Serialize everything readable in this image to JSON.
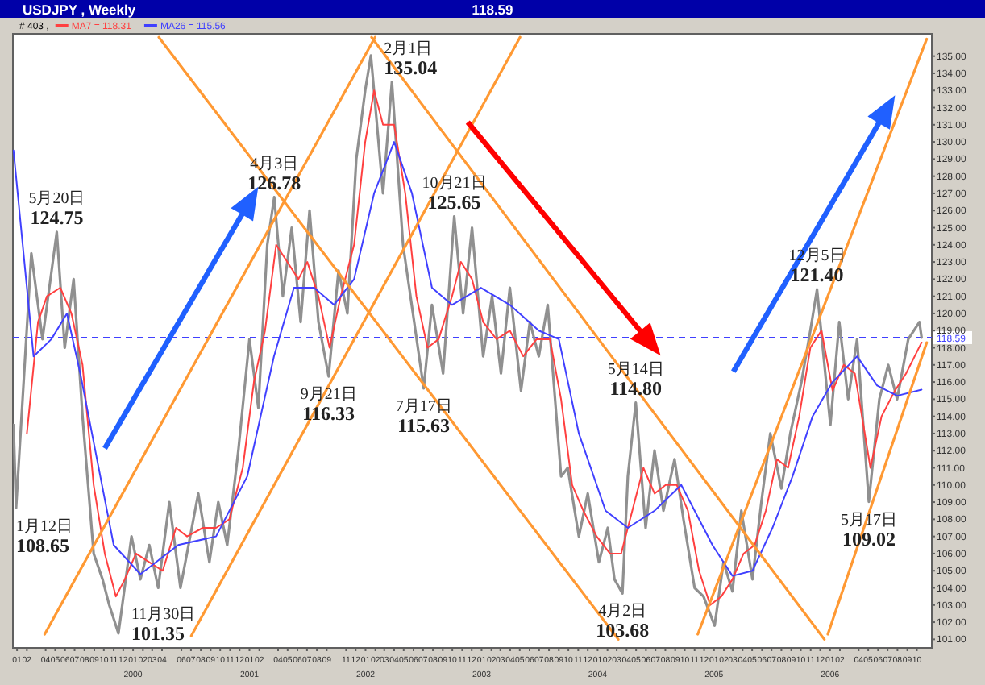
{
  "chart_data": {
    "type": "line",
    "title": "USDJPY , Weekly",
    "legend": "top left",
    "xlim": [
      "1999-01-02",
      "2006-12-01"
    ],
    "ylim": [
      100.5,
      136.3
    ],
    "xticks": [
      {
        "value": "1999-01-15",
        "label": "01"
      },
      {
        "value": "1999-02-15",
        "label": "02"
      },
      {
        "value": "1999-04-15",
        "label": "04"
      },
      {
        "value": "1999-05-15",
        "label": "05"
      },
      {
        "value": "1999-06-15",
        "label": "06"
      },
      {
        "value": "1999-07-15",
        "label": "07"
      },
      {
        "value": "1999-08-15",
        "label": "08"
      },
      {
        "value": "1999-09-15",
        "label": "09"
      },
      {
        "value": "1999-10-15",
        "label": "10"
      },
      {
        "value": "1999-11-15",
        "label": "11"
      },
      {
        "value": "1999-12-15",
        "label": "12"
      },
      {
        "value": "2000-01-15",
        "label": "01\n2000"
      },
      {
        "value": "2000-02-15",
        "label": "02"
      },
      {
        "value": "2000-03-15",
        "label": "03"
      },
      {
        "value": "2000-04-15",
        "label": "04"
      },
      {
        "value": "2000-06-15",
        "label": "06"
      },
      {
        "value": "2000-07-15",
        "label": "07"
      },
      {
        "value": "2000-08-15",
        "label": "08"
      },
      {
        "value": "2000-09-15",
        "label": "09"
      },
      {
        "value": "2000-10-15",
        "label": "10"
      },
      {
        "value": "2000-11-15",
        "label": "11"
      },
      {
        "value": "2000-12-15",
        "label": "12"
      },
      {
        "value": "2001-01-15",
        "label": "01\n2001"
      },
      {
        "value": "2001-02-15",
        "label": "02"
      },
      {
        "value": "2001-04-15",
        "label": "04"
      },
      {
        "value": "2001-05-15",
        "label": "05"
      },
      {
        "value": "2001-06-15",
        "label": "06"
      },
      {
        "value": "2001-07-15",
        "label": "07"
      },
      {
        "value": "2001-08-15",
        "label": "08"
      },
      {
        "value": "2001-09-15",
        "label": "09"
      },
      {
        "value": "2001-11-15",
        "label": "11"
      },
      {
        "value": "2001-12-15",
        "label": "12"
      },
      {
        "value": "2002-01-15",
        "label": "01\n2002"
      },
      {
        "value": "2002-02-15",
        "label": "02"
      },
      {
        "value": "2002-03-15",
        "label": "03"
      },
      {
        "value": "2002-04-15",
        "label": "04"
      },
      {
        "value": "2002-05-15",
        "label": "05"
      },
      {
        "value": "2002-06-15",
        "label": "06"
      },
      {
        "value": "2002-07-15",
        "label": "07"
      },
      {
        "value": "2002-08-15",
        "label": "08"
      },
      {
        "value": "2002-09-15",
        "label": "09"
      },
      {
        "value": "2002-10-15",
        "label": "10"
      },
      {
        "value": "2002-11-15",
        "label": "11"
      },
      {
        "value": "2002-12-15",
        "label": "12"
      },
      {
        "value": "2003-01-15",
        "label": "01\n2003"
      },
      {
        "value": "2003-02-15",
        "label": "02"
      },
      {
        "value": "2003-03-15",
        "label": "03"
      },
      {
        "value": "2003-04-15",
        "label": "04"
      },
      {
        "value": "2003-05-15",
        "label": "05"
      },
      {
        "value": "2003-06-15",
        "label": "06"
      },
      {
        "value": "2003-07-15",
        "label": "07"
      },
      {
        "value": "2003-08-15",
        "label": "08"
      },
      {
        "value": "2003-09-15",
        "label": "09"
      },
      {
        "value": "2003-10-15",
        "label": "10"
      },
      {
        "value": "2003-11-15",
        "label": "11"
      },
      {
        "value": "2003-12-15",
        "label": "12"
      },
      {
        "value": "2004-01-15",
        "label": "01\n2004"
      },
      {
        "value": "2004-02-15",
        "label": "02"
      },
      {
        "value": "2004-03-15",
        "label": "03"
      },
      {
        "value": "2004-04-15",
        "label": "04"
      },
      {
        "value": "2004-05-15",
        "label": "05"
      },
      {
        "value": "2004-06-15",
        "label": "06"
      },
      {
        "value": "2004-07-15",
        "label": "07"
      },
      {
        "value": "2004-08-15",
        "label": "08"
      },
      {
        "value": "2004-09-15",
        "label": "09"
      },
      {
        "value": "2004-10-15",
        "label": "10"
      },
      {
        "value": "2004-11-15",
        "label": "11"
      },
      {
        "value": "2004-12-15",
        "label": "12"
      },
      {
        "value": "2005-01-15",
        "label": "01\n2005"
      },
      {
        "value": "2005-02-15",
        "label": "02"
      },
      {
        "value": "2005-03-15",
        "label": "03"
      },
      {
        "value": "2005-04-15",
        "label": "04"
      },
      {
        "value": "2005-05-15",
        "label": "05"
      },
      {
        "value": "2005-06-15",
        "label": "06"
      },
      {
        "value": "2005-07-15",
        "label": "07"
      },
      {
        "value": "2005-08-15",
        "label": "08"
      },
      {
        "value": "2005-09-15",
        "label": "09"
      },
      {
        "value": "2005-10-15",
        "label": "10"
      },
      {
        "value": "2005-11-15",
        "label": "11"
      },
      {
        "value": "2005-12-15",
        "label": "12"
      },
      {
        "value": "2006-01-15",
        "label": "01\n2006"
      },
      {
        "value": "2006-02-15",
        "label": "02"
      },
      {
        "value": "2006-04-15",
        "label": "04"
      },
      {
        "value": "2006-05-15",
        "label": "05"
      },
      {
        "value": "2006-06-15",
        "label": "06"
      },
      {
        "value": "2006-07-15",
        "label": "07"
      },
      {
        "value": "2006-08-15",
        "label": "08"
      },
      {
        "value": "2006-09-15",
        "label": "09"
      },
      {
        "value": "2006-10-15",
        "label": "10"
      }
    ],
    "yticks": [
      {
        "value": 101,
        "label": "101.00"
      },
      {
        "value": 102,
        "label": "102.00"
      },
      {
        "value": 103,
        "label": "103.00"
      },
      {
        "value": 104,
        "label": "104.00"
      },
      {
        "value": 105,
        "label": "105.00"
      },
      {
        "value": 106,
        "label": "106.00"
      },
      {
        "value": 107,
        "label": "107.00"
      },
      {
        "value": 108,
        "label": "108.00"
      },
      {
        "value": 109,
        "label": "109.00"
      },
      {
        "value": 110,
        "label": "110.00"
      },
      {
        "value": 111,
        "label": "111.00"
      },
      {
        "value": 112,
        "label": "112.00"
      },
      {
        "value": 113,
        "label": "113.00"
      },
      {
        "value": 114,
        "label": "114.00"
      },
      {
        "value": 115,
        "label": "115.00"
      },
      {
        "value": 116,
        "label": "116.00"
      },
      {
        "value": 117,
        "label": "117.00"
      },
      {
        "value": 118,
        "label": "118.00"
      },
      {
        "value": 119,
        "label": "119.00"
      },
      {
        "value": 120,
        "label": "120.00"
      },
      {
        "value": 121,
        "label": "121.00"
      },
      {
        "value": 122,
        "label": "122.00"
      },
      {
        "value": 123,
        "label": "123.00"
      },
      {
        "value": 124,
        "label": "124.00"
      },
      {
        "value": 125,
        "label": "125.00"
      },
      {
        "value": 126,
        "label": "126.00"
      },
      {
        "value": 127,
        "label": "127.00"
      },
      {
        "value": 128,
        "label": "128.00"
      },
      {
        "value": 129,
        "label": "129.00"
      },
      {
        "value": 130,
        "label": "130.00"
      },
      {
        "value": 131,
        "label": "131.00"
      },
      {
        "value": 132,
        "label": "132.00"
      },
      {
        "value": 133,
        "label": "133.00"
      },
      {
        "value": 134,
        "label": "134.00"
      },
      {
        "value": 135,
        "label": "135.00"
      }
    ],
    "ref_lines": [
      {
        "axis": "y",
        "value": 118.59,
        "label": "118.59",
        "color": "#4040ff",
        "line_style": "dashed"
      }
    ],
    "annotations": [
      "118.59",
      "# 403 ,",
      {
        "text": "1月12日\n108.65",
        "x": "1999-01-12",
        "y": 108.65
      },
      {
        "text": "5月20日\n124.75",
        "x": "1999-05-20",
        "y": 124.75
      },
      {
        "text": "11月30日\n101.35",
        "x": "1999-11-30",
        "y": 101.35
      },
      {
        "text": "4月3日\n126.78",
        "x": "2001-04-03",
        "y": 126.78
      },
      {
        "text": "9月21日\n116.33",
        "x": "2001-09-21",
        "y": 116.33
      },
      {
        "text": "2月1日\n135.04",
        "x": "2002-02-01",
        "y": 135.04
      },
      {
        "text": "7月17日\n115.63",
        "x": "2002-07-17",
        "y": 115.63
      },
      {
        "text": "10月21日\n125.65",
        "x": "2002-10-21",
        "y": 125.65
      },
      {
        "text": "4月2日\n103.68",
        "x": "2004-04-02",
        "y": 103.68
      },
      {
        "text": "5月14日\n114.80",
        "x": "2004-05-14",
        "y": 114.8
      },
      {
        "text": "12月5日\n121.40",
        "x": "2005-12-05",
        "y": 121.4
      },
      {
        "text": "5月17日\n109.02",
        "x": "2006-05-17",
        "y": 109.02
      }
    ],
    "series": [
      {
        "color": "#909090",
        "x": [
          "1999-01-04",
          "1999-01-12",
          "1999-02-08",
          "1999-03-01",
          "1999-04-05",
          "1999-05-20",
          "1999-06-14",
          "1999-07-12",
          "1999-08-09",
          "1999-09-13",
          "1999-10-11",
          "1999-11-01",
          "1999-11-30",
          "2000-01-10",
          "2000-02-07",
          "2000-03-06",
          "2000-04-03",
          "2000-05-08",
          "2000-06-12",
          "2000-08-07",
          "2000-09-11",
          "2000-10-09",
          "2000-11-06",
          "2000-12-11",
          "2001-01-15",
          "2001-02-12",
          "2001-03-12",
          "2001-04-03",
          "2001-04-30",
          "2001-05-28",
          "2001-06-25",
          "2001-07-23",
          "2001-08-20",
          "2001-09-21",
          "2001-10-22",
          "2001-11-19",
          "2001-12-17",
          "2002-01-14",
          "2002-02-01",
          "2002-03-11",
          "2002-04-08",
          "2002-05-13",
          "2002-06-17",
          "2002-07-17",
          "2002-08-12",
          "2002-09-16",
          "2002-10-21",
          "2002-11-18",
          "2002-12-16",
          "2003-01-20",
          "2003-02-17",
          "2003-03-17",
          "2003-04-14",
          "2003-05-19",
          "2003-06-16",
          "2003-07-14",
          "2003-08-11",
          "2003-09-22",
          "2003-10-13",
          "2003-11-17",
          "2003-12-15",
          "2004-01-19",
          "2004-02-16",
          "2004-03-08",
          "2004-04-02",
          "2004-04-19",
          "2004-05-14",
          "2004-06-14",
          "2004-07-12",
          "2004-08-09",
          "2004-09-13",
          "2004-10-11",
          "2004-11-15",
          "2004-12-13",
          "2005-01-17",
          "2005-02-14",
          "2005-03-14",
          "2005-04-11",
          "2005-05-16",
          "2005-06-13",
          "2005-07-11",
          "2005-08-15",
          "2005-09-12",
          "2005-10-17",
          "2005-11-14",
          "2005-12-05",
          "2006-01-16",
          "2006-02-13",
          "2006-03-13",
          "2006-04-10",
          "2006-05-17",
          "2006-06-19",
          "2006-07-17",
          "2006-08-14",
          "2006-09-18",
          "2006-10-23",
          "2006-10-30"
        ],
        "values": [
          113.5,
          108.65,
          117.0,
          123.5,
          118.5,
          124.75,
          118.0,
          122.0,
          114.0,
          106.0,
          104.5,
          103.0,
          101.35,
          107.0,
          104.5,
          106.5,
          104.0,
          109.0,
          104.0,
          109.5,
          105.5,
          109.0,
          106.5,
          112.0,
          118.5,
          114.5,
          124.0,
          126.78,
          121.0,
          125.0,
          119.5,
          126.0,
          119.5,
          116.33,
          122.5,
          120.0,
          129.0,
          133.0,
          135.04,
          127.0,
          133.5,
          124.0,
          119.5,
          115.63,
          120.5,
          116.5,
          125.65,
          120.0,
          125.0,
          117.5,
          121.0,
          116.5,
          121.5,
          115.5,
          119.5,
          117.5,
          120.5,
          110.5,
          111.0,
          107.0,
          109.5,
          105.5,
          107.5,
          104.5,
          103.68,
          110.5,
          114.8,
          107.5,
          112.0,
          108.5,
          111.5,
          108.0,
          104.0,
          103.5,
          101.8,
          105.5,
          103.8,
          108.5,
          104.5,
          109.0,
          113.0,
          109.8,
          113.0,
          116.0,
          119.0,
          121.4,
          113.5,
          119.5,
          115.0,
          118.5,
          109.02,
          115.0,
          117.0,
          115.0,
          118.5,
          119.5,
          118.59
        ]
      },
      {
        "name": "MA7 = 118.31",
        "color": "#ff4040",
        "x": [
          "1999-02-15",
          "1999-03-22",
          "1999-04-19",
          "1999-05-31",
          "1999-07-05",
          "1999-08-09",
          "1999-09-13",
          "1999-10-18",
          "1999-11-22",
          "1999-12-20",
          "2000-01-24",
          "2000-03-06",
          "2000-04-17",
          "2000-05-29",
          "2000-07-03",
          "2000-08-21",
          "2000-10-02",
          "2000-11-13",
          "2000-12-25",
          "2001-01-29",
          "2001-03-05",
          "2001-04-09",
          "2001-05-14",
          "2001-06-18",
          "2001-07-16",
          "2001-08-20",
          "2001-09-24",
          "2001-10-29",
          "2001-12-10",
          "2002-01-14",
          "2002-02-11",
          "2002-03-11",
          "2002-04-15",
          "2002-05-20",
          "2002-06-24",
          "2002-07-29",
          "2002-09-02",
          "2002-10-14",
          "2002-11-11",
          "2002-12-16",
          "2003-01-20",
          "2003-03-03",
          "2003-04-14",
          "2003-05-26",
          "2003-07-07",
          "2003-08-18",
          "2003-09-22",
          "2003-10-27",
          "2003-12-01",
          "2004-01-12",
          "2004-02-23",
          "2004-03-29",
          "2004-05-03",
          "2004-06-07",
          "2004-07-12",
          "2004-08-16",
          "2004-09-20",
          "2004-10-25",
          "2004-11-29",
          "2005-01-03",
          "2005-02-07",
          "2005-03-14",
          "2005-04-18",
          "2005-05-23",
          "2005-06-27",
          "2005-08-01",
          "2005-09-05",
          "2005-10-10",
          "2005-11-14",
          "2005-12-19",
          "2006-01-23",
          "2006-02-27",
          "2006-04-03",
          "2006-05-22",
          "2006-06-26",
          "2006-08-07",
          "2006-09-11",
          "2006-10-30"
        ],
        "values": [
          113,
          119.5,
          121,
          121.5,
          120,
          117,
          110,
          106,
          103.5,
          104.5,
          106,
          105.5,
          105,
          107.5,
          107,
          107.5,
          107.5,
          108,
          111,
          116,
          119,
          124,
          123,
          122,
          123,
          121,
          118,
          121,
          124,
          130,
          133,
          131,
          131,
          127,
          121,
          118,
          118.5,
          121,
          123,
          122,
          119.5,
          118.5,
          119,
          117.5,
          118.5,
          118.5,
          115,
          110,
          108.5,
          107,
          106,
          106,
          108.5,
          111,
          109.5,
          110,
          110,
          108.5,
          105,
          103,
          103.5,
          104.5,
          106,
          106.5,
          108.5,
          111.5,
          111,
          114,
          118,
          119,
          115.5,
          117,
          116.5,
          111,
          114,
          115.5,
          116.5,
          118.31
        ]
      },
      {
        "name": "MA26 = 115.56",
        "color": "#4040ff",
        "x": [
          "1999-01-04",
          "1999-03-08",
          "1999-05-03",
          "1999-06-21",
          "1999-08-02",
          "1999-09-13",
          "1999-11-15",
          "2000-02-07",
          "2000-06-05",
          "2000-10-02",
          "2001-01-08",
          "2001-04-02",
          "2001-06-04",
          "2001-08-06",
          "2001-10-08",
          "2001-12-10",
          "2002-02-11",
          "2002-04-15",
          "2002-06-10",
          "2002-08-12",
          "2002-10-14",
          "2003-01-13",
          "2003-04-14",
          "2003-07-14",
          "2003-09-15",
          "2003-11-17",
          "2004-02-09",
          "2004-04-19",
          "2004-07-12",
          "2004-10-04",
          "2005-01-10",
          "2005-03-14",
          "2005-05-16",
          "2005-07-18",
          "2005-09-19",
          "2005-11-21",
          "2006-01-23",
          "2006-04-10",
          "2006-06-12",
          "2006-08-14",
          "2006-10-30"
        ],
        "values": [
          129.5,
          117.5,
          118.5,
          120,
          116.5,
          112.5,
          106.5,
          104.8,
          106.5,
          107,
          110.5,
          117.5,
          121.5,
          121.5,
          120.5,
          122,
          127,
          130,
          127,
          121.5,
          120.5,
          121.5,
          120.5,
          119,
          118.5,
          113,
          108.5,
          107.5,
          108.5,
          110,
          106.5,
          104.7,
          105,
          107.5,
          110.5,
          114,
          116,
          117.5,
          115.8,
          115.2,
          115.56
        ]
      },
      {
        "color": "#ff9933",
        "x": [
          "2000-04-05",
          "2004-03-20"
        ],
        "values": [
          136.1,
          101.0
        ]
      },
      {
        "color": "#ff9933",
        "x": [
          "2002-02-03",
          "2005-12-28"
        ],
        "values": [
          136.1,
          101.0
        ]
      },
      {
        "color": "#ff9933",
        "x": [
          "1999-04-12",
          "2002-02-14"
        ],
        "values": [
          101.3,
          136.1
        ]
      },
      {
        "color": "#ff9933",
        "x": [
          "2000-07-16",
          "2003-05-16"
        ],
        "values": [
          101.2,
          136.1
        ]
      },
      {
        "color": "#ff9933",
        "x": [
          "2004-11-25",
          "2006-11-15"
        ],
        "values": [
          101.3,
          136.0
        ]
      },
      {
        "color": "#ff9933",
        "x": [
          "2006-01-08",
          "2006-11-15"
        ],
        "values": [
          101.3,
          118.3
        ]
      }
    ]
  }
}
